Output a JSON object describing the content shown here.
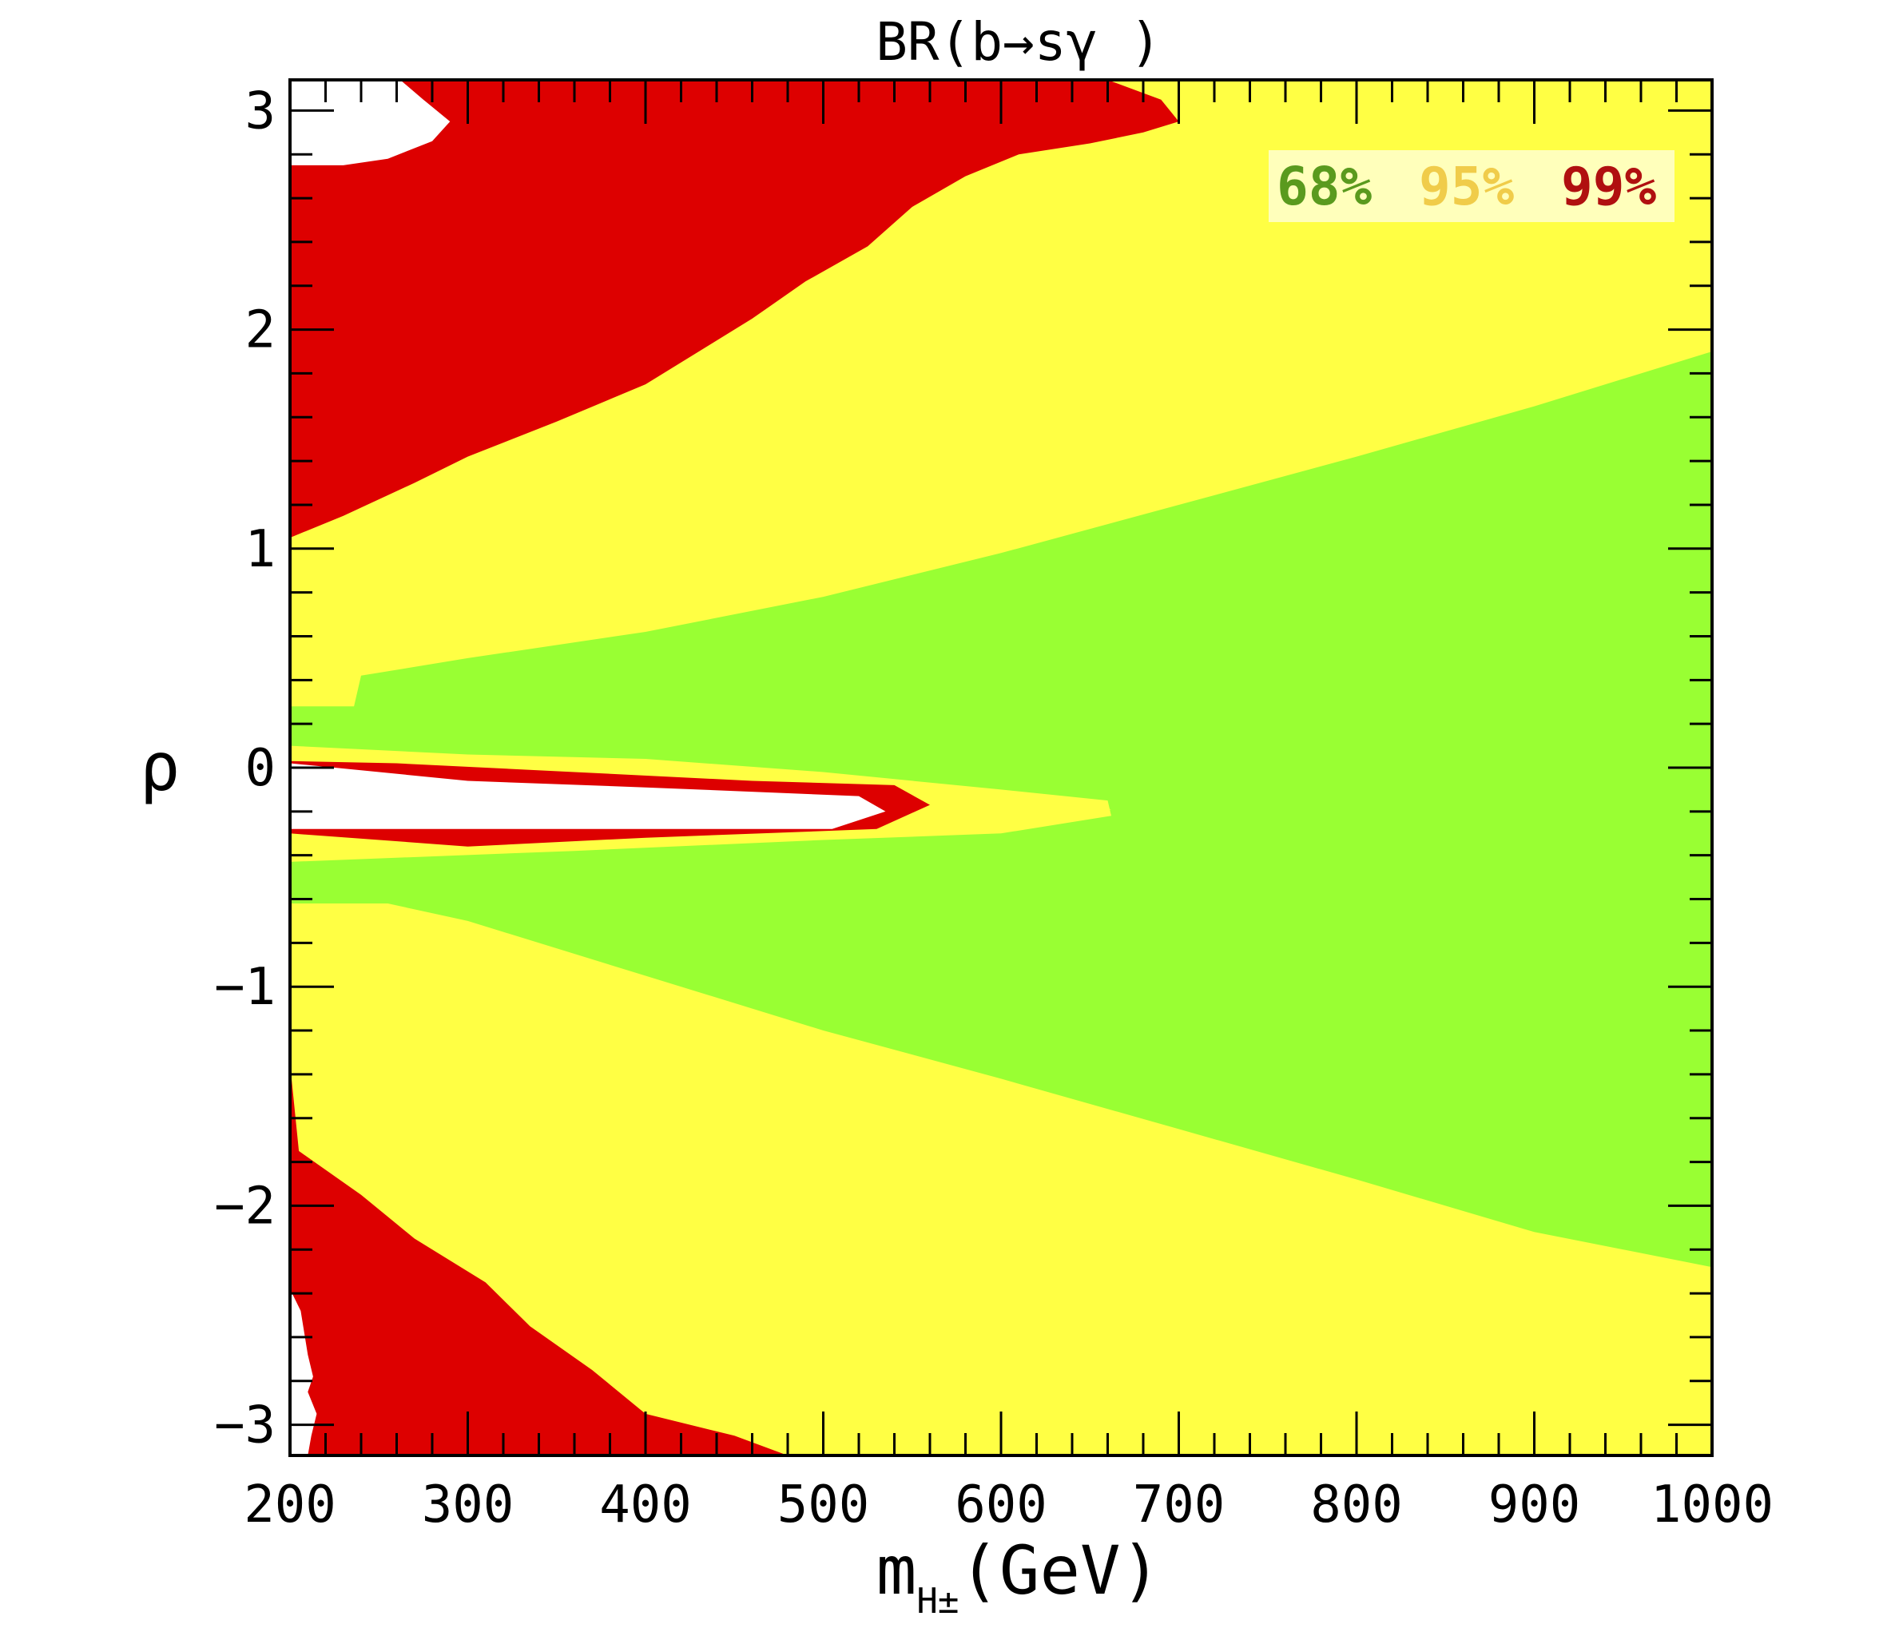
{
  "chart_data": {
    "type": "contour",
    "title": "BR(b→sγ )",
    "xlabel": "m",
    "xlabel_subscript": "H±",
    "xlabel_unit": "(GeV)",
    "ylabel": "ρ",
    "xlim": [
      200,
      1000
    ],
    "ylim": [
      -3.14,
      3.14
    ],
    "x_ticks": [
      200,
      300,
      400,
      500,
      600,
      700,
      800,
      900,
      1000
    ],
    "x_tick_labels": [
      "200",
      "300",
      "400",
      "500",
      "600",
      "700",
      "800",
      "900",
      "1000"
    ],
    "y_ticks": [
      -3,
      -2,
      -1,
      0,
      1,
      2,
      3
    ],
    "y_tick_labels": [
      "−3",
      "−2",
      "−1",
      "0",
      "1",
      "2",
      "3"
    ],
    "grid": false,
    "legend_position": "top-right",
    "legend": [
      {
        "label": "68%",
        "color": "#5a9a1e"
      },
      {
        "label": "95%",
        "color": "#f0cc4a"
      },
      {
        "label": "99%",
        "color": "#b01010"
      }
    ],
    "background_color": "#ffff44",
    "regions": [
      {
        "level": "68%",
        "color": "#99ff33",
        "points": [
          [
            200,
            0.1
          ],
          [
            200,
            0.28
          ],
          [
            236,
            0.28
          ],
          [
            240,
            0.42
          ],
          [
            300,
            0.5
          ],
          [
            400,
            0.62
          ],
          [
            500,
            0.78
          ],
          [
            600,
            0.98
          ],
          [
            700,
            1.2
          ],
          [
            800,
            1.42
          ],
          [
            900,
            1.65
          ],
          [
            1000,
            1.9
          ],
          [
            1000,
            -2.28
          ],
          [
            900,
            -2.12
          ],
          [
            800,
            -1.88
          ],
          [
            700,
            -1.65
          ],
          [
            600,
            -1.42
          ],
          [
            500,
            -1.2
          ],
          [
            400,
            -0.95
          ],
          [
            300,
            -0.7
          ],
          [
            255,
            -0.62
          ],
          [
            200,
            -0.62
          ],
          [
            200,
            -0.43
          ],
          [
            360,
            -0.38
          ],
          [
            500,
            -0.33
          ],
          [
            600,
            -0.3
          ],
          [
            662,
            -0.22
          ],
          [
            660,
            -0.15
          ],
          [
            600,
            -0.1
          ],
          [
            500,
            -0.02
          ],
          [
            400,
            0.04
          ],
          [
            300,
            0.06
          ],
          [
            200,
            0.1
          ]
        ]
      },
      {
        "level": "95%",
        "color": "#ffff44",
        "points": [
          [
            200,
            0.02
          ],
          [
            300,
            0
          ],
          [
            400,
            -0.03
          ],
          [
            500,
            -0.07
          ],
          [
            600,
            -0.11
          ],
          [
            662,
            -0.19
          ],
          [
            600,
            -0.28
          ],
          [
            500,
            -0.32
          ],
          [
            300,
            -0.38
          ],
          [
            200,
            -0.4
          ]
        ]
      },
      {
        "level": "99%",
        "color": "#dd0000",
        "points": [
          [
            200,
            -0.3
          ],
          [
            200,
            0.03
          ],
          [
            260,
            0.02
          ],
          [
            360,
            -0.02
          ],
          [
            460,
            -0.06
          ],
          [
            540,
            -0.08
          ],
          [
            560,
            -0.17
          ],
          [
            530,
            -0.28
          ],
          [
            400,
            -0.32
          ],
          [
            300,
            -0.36
          ]
        ]
      },
      {
        "level": "99%",
        "color": "#dd0000",
        "points": [
          [
            200,
            3.14
          ],
          [
            200,
            1.05
          ],
          [
            230,
            1.15
          ],
          [
            270,
            1.3
          ],
          [
            300,
            1.42
          ],
          [
            350,
            1.58
          ],
          [
            400,
            1.75
          ],
          [
            430,
            1.9
          ],
          [
            460,
            2.05
          ],
          [
            490,
            2.22
          ],
          [
            525,
            2.38
          ],
          [
            550,
            2.56
          ],
          [
            580,
            2.7
          ],
          [
            610,
            2.8
          ],
          [
            650,
            2.85
          ],
          [
            680,
            2.9
          ],
          [
            700,
            2.95
          ],
          [
            690,
            3.05
          ],
          [
            660,
            3.14
          ]
        ]
      },
      {
        "level": "99%",
        "color": "#dd0000",
        "points": [
          [
            200,
            -1.35
          ],
          [
            200,
            -3.14
          ],
          [
            480,
            -3.14
          ],
          [
            450,
            -3.05
          ],
          [
            400,
            -2.95
          ],
          [
            370,
            -2.75
          ],
          [
            335,
            -2.55
          ],
          [
            310,
            -2.35
          ],
          [
            270,
            -2.15
          ],
          [
            240,
            -1.95
          ],
          [
            205,
            -1.75
          ]
        ]
      },
      {
        "level": "outside",
        "color": "#ffffff",
        "points": [
          [
            200,
            0.02
          ],
          [
            200,
            -0.28
          ],
          [
            400,
            -0.28
          ],
          [
            505,
            -0.28
          ],
          [
            535,
            -0.2
          ],
          [
            520,
            -0.13
          ],
          [
            400,
            -0.09
          ],
          [
            300,
            -0.06
          ]
        ]
      },
      {
        "level": "outside",
        "color": "#ffffff",
        "points": [
          [
            200,
            2.75
          ],
          [
            200,
            3.14
          ],
          [
            262,
            3.14
          ],
          [
            275,
            3.05
          ],
          [
            290,
            2.95
          ],
          [
            280,
            2.86
          ],
          [
            255,
            2.78
          ],
          [
            230,
            2.75
          ]
        ]
      },
      {
        "level": "outside",
        "color": "#ffffff",
        "points": [
          [
            200,
            -2.38
          ],
          [
            200,
            -3.14
          ],
          [
            210,
            -3.14
          ],
          [
            212,
            -3.05
          ],
          [
            215,
            -2.95
          ],
          [
            210,
            -2.85
          ],
          [
            213,
            -2.78
          ],
          [
            210,
            -2.68
          ],
          [
            206,
            -2.48
          ]
        ]
      }
    ]
  }
}
